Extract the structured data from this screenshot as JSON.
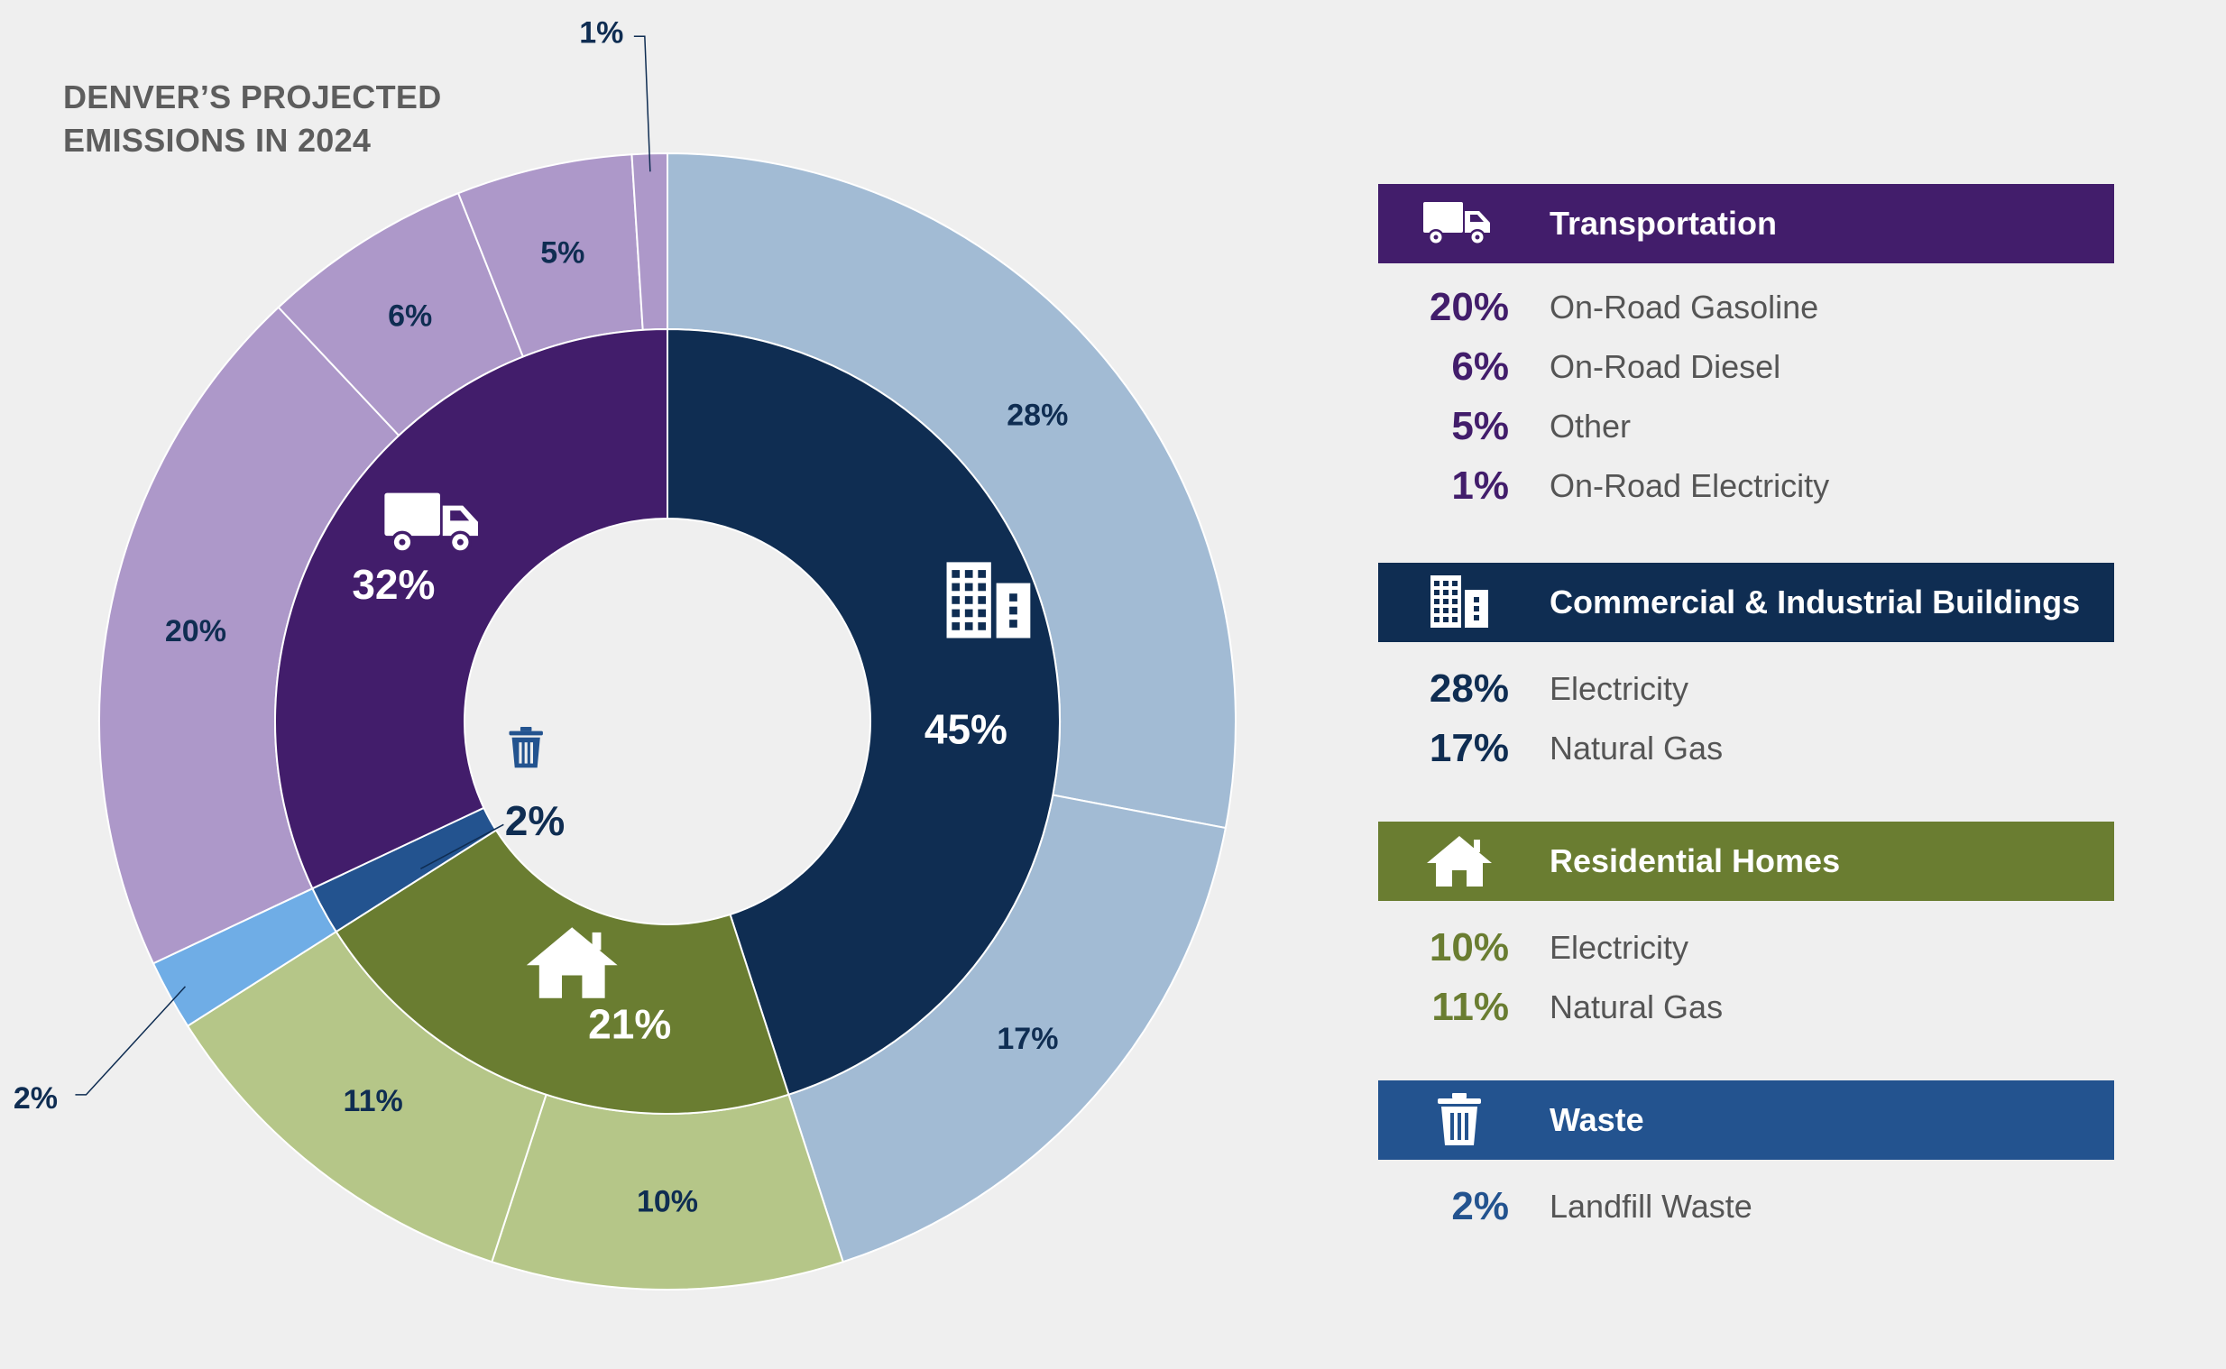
{
  "title": "DENVER’S PROJECTED EMISSIONS IN 2024",
  "colors": {
    "background": "#efefef",
    "transportation": "#421d6b",
    "transportation_light": "#ad98c9",
    "commercial": "#0f2d52",
    "commercial_light": "#a2bbd4",
    "residential": "#6a7d31",
    "residential_light": "#b5c688",
    "waste": "#23538f",
    "waste_light": "#6fade6"
  },
  "chart_data": {
    "type": "pie",
    "variant": "nested-donut",
    "title": "DENVER’S PROJECTED EMISSIONS IN 2024",
    "inner": [
      {
        "name": "Commercial & Industrial Buildings",
        "value": 45,
        "label": "45%",
        "icon": "buildings-icon",
        "color": "#0f2d52"
      },
      {
        "name": "Residential Homes",
        "value": 21,
        "label": "21%",
        "icon": "house-icon",
        "color": "#6a7d31"
      },
      {
        "name": "Waste",
        "value": 2,
        "label": "2%",
        "icon": "trash-icon",
        "color": "#23538f"
      },
      {
        "name": "Transportation",
        "value": 32,
        "label": "32%",
        "icon": "truck-icon",
        "color": "#421d6b"
      }
    ],
    "outer": [
      {
        "group": "Commercial & Industrial Buildings",
        "name": "Electricity",
        "value": 28,
        "label": "28%",
        "color": "#a2bbd4"
      },
      {
        "group": "Commercial & Industrial Buildings",
        "name": "Natural Gas",
        "value": 17,
        "label": "17%",
        "color": "#a2bbd4"
      },
      {
        "group": "Residential Homes",
        "name": "Electricity",
        "value": 10,
        "label": "10%",
        "color": "#b5c688"
      },
      {
        "group": "Residential Homes",
        "name": "Natural Gas",
        "value": 11,
        "label": "11%",
        "color": "#b5c688"
      },
      {
        "group": "Waste",
        "name": "Landfill Waste",
        "value": 2,
        "label": "2%",
        "color": "#6fade6"
      },
      {
        "group": "Transportation",
        "name": "On-Road Gasoline",
        "value": 20,
        "label": "20%",
        "color": "#ad98c9"
      },
      {
        "group": "Transportation",
        "name": "On-Road Diesel",
        "value": 6,
        "label": "6%",
        "color": "#ad98c9"
      },
      {
        "group": "Transportation",
        "name": "Other",
        "value": 5,
        "label": "5%",
        "color": "#ad98c9"
      },
      {
        "group": "Transportation",
        "name": "On-Road Electricity",
        "value": 1,
        "label": "1%",
        "color": "#ad98c9"
      }
    ]
  },
  "legend": [
    {
      "header": "Transportation",
      "icon": "truck-icon",
      "color": "#421d6b",
      "items": [
        {
          "pct": "20%",
          "label": "On-Road Gasoline"
        },
        {
          "pct": "6%",
          "label": "On-Road Diesel"
        },
        {
          "pct": "5%",
          "label": "Other"
        },
        {
          "pct": "1%",
          "label": "On-Road Electricity"
        }
      ]
    },
    {
      "header": "Commercial & Industrial Buildings",
      "icon": "buildings-icon",
      "color": "#0f2d52",
      "items": [
        {
          "pct": "28%",
          "label": "Electricity"
        },
        {
          "pct": "17%",
          "label": "Natural Gas"
        }
      ]
    },
    {
      "header": "Residential Homes",
      "icon": "house-icon",
      "color": "#6a7d31",
      "items": [
        {
          "pct": "10%",
          "label": "Electricity"
        },
        {
          "pct": "11%",
          "label": "Natural Gas"
        }
      ]
    },
    {
      "header": "Waste",
      "icon": "trash-icon",
      "color": "#23538f",
      "items": [
        {
          "pct": "2%",
          "label": "Landfill Waste"
        }
      ]
    }
  ]
}
